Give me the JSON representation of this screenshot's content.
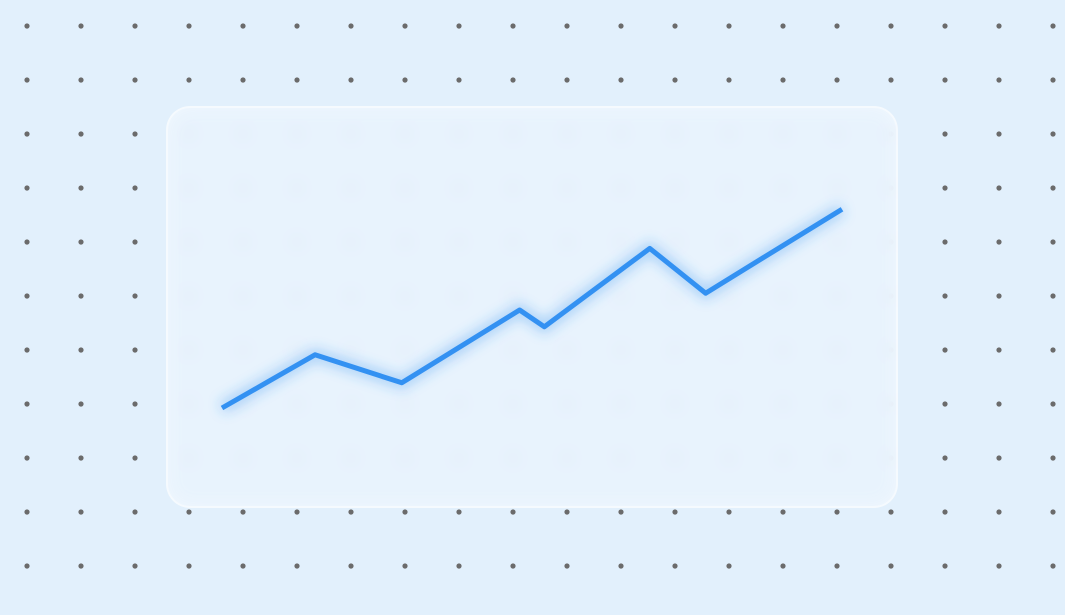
{
  "colors": {
    "background": "#e2f0fc",
    "dot": "#6b6b6b",
    "line": "#3391f2"
  },
  "chart_data": {
    "type": "line",
    "title": "",
    "xlabel": "",
    "ylabel": "",
    "grid": false,
    "xlim": [
      0,
      100
    ],
    "ylim": [
      0,
      100
    ],
    "series": [
      {
        "x": [
          0,
          15,
          29,
          48,
          52,
          69,
          78,
          100
        ],
        "values": [
          15,
          34,
          24,
          50,
          44,
          72,
          56,
          86
        ]
      }
    ]
  }
}
